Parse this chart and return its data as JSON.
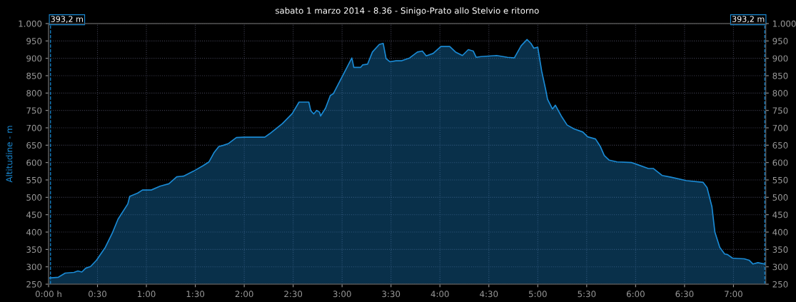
{
  "chart_data": {
    "type": "area",
    "title": "sabato 1 marzo 2014 - 8.36 - Sinigo-Prato allo Stelvio e ritorno",
    "ylabel": "Altitudine - m",
    "x": [
      0.005,
      0.1,
      0.17,
      0.26,
      0.3,
      0.34,
      0.38,
      0.43,
      0.49,
      0.58,
      0.65,
      0.71,
      0.81,
      0.83,
      0.91,
      0.96,
      1.05,
      1.14,
      1.23,
      1.31,
      1.38,
      1.48,
      1.58,
      1.64,
      1.69,
      1.74,
      1.79,
      1.84,
      1.92,
      2.0,
      2.21,
      2.26,
      2.39,
      2.49,
      2.56,
      2.66,
      2.68,
      2.71,
      2.74,
      2.77,
      2.78,
      2.83,
      2.88,
      2.91,
      3.1,
      3.12,
      3.19,
      3.21,
      3.26,
      3.31,
      3.38,
      3.42,
      3.45,
      3.49,
      3.55,
      3.61,
      3.69,
      3.77,
      3.82,
      3.86,
      3.93,
      4.01,
      4.1,
      4.16,
      4.23,
      4.29,
      4.34,
      4.37,
      4.42,
      4.58,
      4.69,
      4.76,
      4.83,
      4.89,
      4.93,
      4.96,
      5.0,
      5.04,
      5.08,
      5.1,
      5.15,
      5.18,
      5.24,
      5.3,
      5.37,
      5.46,
      5.51,
      5.59,
      5.64,
      5.68,
      5.73,
      5.81,
      5.96,
      6.01,
      6.13,
      6.18,
      6.27,
      6.36,
      6.52,
      6.69,
      6.73,
      6.78,
      6.81,
      6.86,
      6.91,
      6.94,
      6.99,
      7.04,
      7.11,
      7.16,
      7.2,
      7.25,
      7.32
    ],
    "series": [
      {
        "color": "#1a8ad4",
        "values": [
          268,
          270,
          282,
          284,
          288,
          285,
          296,
          301,
          319,
          356,
          396,
          437,
          481,
          503,
          512,
          521,
          521,
          532,
          539,
          559,
          561,
          575,
          591,
          602,
          628,
          646,
          650,
          655,
          672,
          673,
          673,
          683,
          712,
          741,
          774,
          774,
          749,
          740,
          750,
          745,
          734,
          756,
          793,
          798,
          901,
          874,
          874,
          881,
          883,
          918,
          940,
          943,
          899,
          890,
          893,
          893,
          901,
          918,
          921,
          907,
          914,
          934,
          934,
          918,
          908,
          925,
          921,
          903,
          905,
          908,
          903,
          901,
          936,
          954,
          943,
          929,
          932,
          863,
          811,
          782,
          754,
          765,
          734,
          708,
          697,
          688,
          674,
          668,
          646,
          620,
          607,
          602,
          600,
          595,
          583,
          583,
          563,
          558,
          548,
          543,
          528,
          473,
          400,
          356,
          337,
          335,
          325,
          324,
          323,
          319,
          308,
          312,
          308
        ]
      }
    ],
    "xlim": [
      0,
      7.33
    ],
    "xticks": [
      {
        "value": 0,
        "label": "0:00 h"
      },
      {
        "value": 0.5,
        "label": "0:30"
      },
      {
        "value": 1,
        "label": "1:00"
      },
      {
        "value": 1.5,
        "label": "1:30"
      },
      {
        "value": 2,
        "label": "2:00"
      },
      {
        "value": 2.5,
        "label": "2:30"
      },
      {
        "value": 3,
        "label": "3:00"
      },
      {
        "value": 3.5,
        "label": "3:30"
      },
      {
        "value": 4,
        "label": "4:00"
      },
      {
        "value": 4.5,
        "label": "4:30"
      },
      {
        "value": 5,
        "label": "5:00"
      },
      {
        "value": 5.5,
        "label": "5:30"
      },
      {
        "value": 6,
        "label": "6:00"
      },
      {
        "value": 6.5,
        "label": "6:30"
      },
      {
        "value": 7,
        "label": "7:00"
      }
    ],
    "ylim": [
      250,
      1000
    ],
    "yticks": [
      250,
      300,
      350,
      400,
      450,
      500,
      550,
      600,
      650,
      700,
      750,
      800,
      850,
      900,
      950,
      {
        "value": 1000,
        "label": "1.000"
      }
    ],
    "y2lim": [
      250,
      1000
    ],
    "y2ticks": [
      250,
      300,
      350,
      400,
      450,
      500,
      550,
      600,
      650,
      700,
      750,
      800,
      850,
      900,
      950,
      {
        "value": 1000,
        "label": "1.000"
      }
    ],
    "ref_lines": [
      {
        "axis": "x",
        "value": 0.02,
        "label": "393,2 m",
        "color": "#1a8ad4",
        "line_style": "dashed"
      },
      {
        "axis": "x",
        "value": 7.32,
        "label": "393,2 m",
        "color": "#1a8ad4",
        "line_style": "dashed"
      }
    ],
    "grid": true
  }
}
